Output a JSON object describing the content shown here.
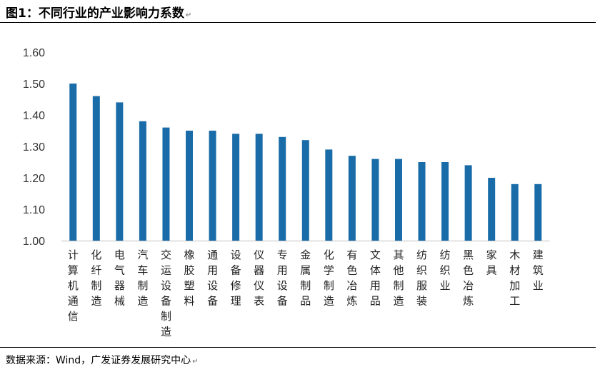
{
  "title": "图1：不同行业的产业影响力系数",
  "source": "数据来源：Wind，广发证券发展研究中心",
  "chart_data": {
    "type": "bar",
    "title": "图1：不同行业的产业影响力系数",
    "xlabel": "",
    "ylabel": "",
    "ylim": [
      1.0,
      1.6
    ],
    "yticks": [
      "1.00",
      "1.10",
      "1.20",
      "1.30",
      "1.40",
      "1.50",
      "1.60"
    ],
    "grid": false,
    "legend": "none",
    "bar_color": "#1a6ca8",
    "categories": [
      "计算机通信",
      "化纤制造",
      "电气器械",
      "汽车制造",
      "交运设备制造",
      "橡胶塑料",
      "通用设备",
      "设备修理",
      "仪器仪表",
      "专用设备",
      "金属制品",
      "化学制造",
      "有色冶炼",
      "文体用品",
      "其他制造",
      "纺织服装",
      "纺织业",
      "黑色冶炼",
      "家具",
      "木材加工",
      "建筑业"
    ],
    "values": [
      1.5,
      1.46,
      1.44,
      1.38,
      1.36,
      1.35,
      1.35,
      1.34,
      1.34,
      1.33,
      1.32,
      1.29,
      1.27,
      1.26,
      1.26,
      1.25,
      1.25,
      1.24,
      1.2,
      1.18,
      1.18
    ]
  }
}
